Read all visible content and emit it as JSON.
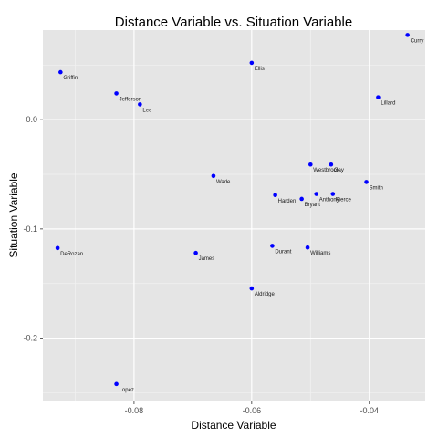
{
  "chart_data": {
    "type": "scatter",
    "title": "Distance Variable vs. Situation Variable",
    "xlabel": "Distance Variable",
    "ylabel": "Situation Variable",
    "xlim": [
      -0.0955,
      -0.0305
    ],
    "ylim": [
      -0.258,
      0.082
    ],
    "x_ticks": [
      -0.08,
      -0.06,
      -0.04
    ],
    "x_tick_labels": [
      "-0.08",
      "-0.06",
      "-0.04"
    ],
    "y_ticks": [
      0.0,
      -0.1,
      -0.2
    ],
    "y_tick_labels": [
      "0.0",
      "-0.1",
      "-0.2"
    ],
    "grid": true,
    "point_color": "#0000ff",
    "background_color": "#e5e5e5",
    "grid_color": "#ffffff",
    "points": [
      {
        "label": "Curry",
        "x": -0.0335,
        "y": 0.0775
      },
      {
        "label": "Griffin",
        "x": -0.0925,
        "y": 0.0435
      },
      {
        "label": "Ellis",
        "x": -0.06,
        "y": 0.052
      },
      {
        "label": "Jefferson",
        "x": -0.083,
        "y": 0.024
      },
      {
        "label": "Lee",
        "x": -0.079,
        "y": 0.014
      },
      {
        "label": "Lillard",
        "x": -0.0385,
        "y": 0.0205
      },
      {
        "label": "Westbrook",
        "x": -0.05,
        "y": -0.041
      },
      {
        "label": "Gay",
        "x": -0.0465,
        "y": -0.041
      },
      {
        "label": "Wade",
        "x": -0.0665,
        "y": -0.0515
      },
      {
        "label": "Smith",
        "x": -0.0405,
        "y": -0.057
      },
      {
        "label": "Harden",
        "x": -0.056,
        "y": -0.069
      },
      {
        "label": "Anthony",
        "x": -0.049,
        "y": -0.068
      },
      {
        "label": "Pierce",
        "x": -0.0462,
        "y": -0.068
      },
      {
        "label": "Bryant",
        "x": -0.0515,
        "y": -0.0725
      },
      {
        "label": "DeRozan",
        "x": -0.093,
        "y": -0.1175
      },
      {
        "label": "James",
        "x": -0.0695,
        "y": -0.122
      },
      {
        "label": "Durant",
        "x": -0.0565,
        "y": -0.1155
      },
      {
        "label": "Williams",
        "x": -0.0505,
        "y": -0.117
      },
      {
        "label": "Aldridge",
        "x": -0.06,
        "y": -0.1545
      },
      {
        "label": "Lopez",
        "x": -0.083,
        "y": -0.242
      }
    ]
  }
}
